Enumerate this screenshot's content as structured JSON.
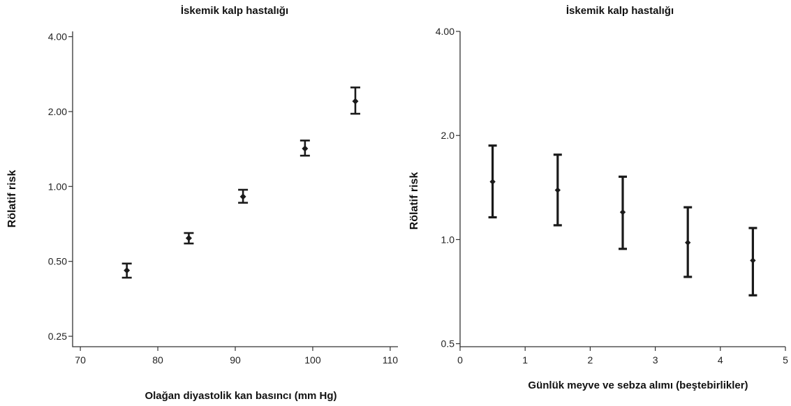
{
  "chart_data": [
    {
      "type": "scatter",
      "title": "İskemik kalp hastalığı",
      "xlabel": "Olağan diyastolik kan basıncı (mm Hg)",
      "ylabel": "Rölatif risk",
      "xlim": [
        69,
        111
      ],
      "ylim": [
        0.227,
        4.2
      ],
      "yscale": "log",
      "x_ticks": [
        70,
        80,
        90,
        100,
        110
      ],
      "x_tick_labels": [
        "70",
        "80",
        "90",
        "100",
        "110"
      ],
      "y_ticks": [
        0.25,
        0.5,
        1.0,
        2.0,
        4.0
      ],
      "y_tick_labels": [
        "0.25",
        "0.50",
        "1.00",
        "2.00",
        "4.00"
      ],
      "grid": false,
      "legend": "none",
      "points": [
        {
          "x": 76,
          "y": 0.46,
          "lo": 0.43,
          "hi": 0.49
        },
        {
          "x": 84,
          "y": 0.62,
          "lo": 0.59,
          "hi": 0.65
        },
        {
          "x": 91,
          "y": 0.91,
          "lo": 0.86,
          "hi": 0.97
        },
        {
          "x": 99,
          "y": 1.42,
          "lo": 1.33,
          "hi": 1.53
        },
        {
          "x": 105.5,
          "y": 2.2,
          "lo": 1.96,
          "hi": 2.5
        }
      ]
    },
    {
      "type": "scatter",
      "title": "İskemik kalp hastalığı",
      "xlabel": "Günlük meyve ve sebza alımı (beştebirlikler)",
      "ylabel": "Rölatif risk",
      "xlim": [
        0,
        5
      ],
      "ylim": [
        0.49,
        4.0
      ],
      "yscale": "log",
      "x_ticks": [
        0,
        1,
        2,
        3,
        4,
        5
      ],
      "x_tick_labels": [
        "0",
        "1",
        "2",
        "3",
        "4",
        "5"
      ],
      "y_ticks": [
        0.5,
        1.0,
        2.0,
        4.0
      ],
      "y_tick_labels": [
        "0.5",
        "1.0",
        "2.0",
        "4.00"
      ],
      "grid": false,
      "legend": "none",
      "points": [
        {
          "x": 0.5,
          "y": 1.47,
          "lo": 1.16,
          "hi": 1.87
        },
        {
          "x": 1.5,
          "y": 1.39,
          "lo": 1.1,
          "hi": 1.76
        },
        {
          "x": 2.5,
          "y": 1.2,
          "lo": 0.94,
          "hi": 1.52
        },
        {
          "x": 3.5,
          "y": 0.98,
          "lo": 0.78,
          "hi": 1.24
        },
        {
          "x": 4.5,
          "y": 0.87,
          "lo": 0.69,
          "hi": 1.08
        }
      ]
    }
  ]
}
